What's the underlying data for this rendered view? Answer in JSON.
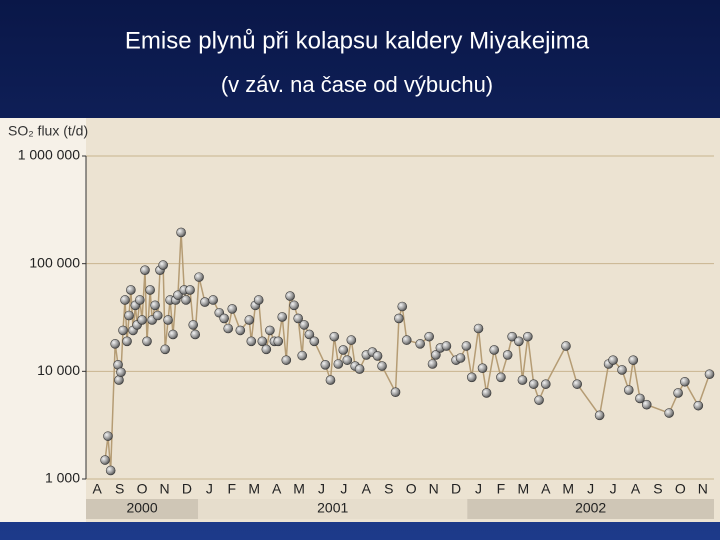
{
  "title": "Emise plynů při kolapsu kaldery Miyakejima",
  "subtitle": "(v záv. na čase od výbuchu)",
  "chart_data": {
    "type": "line",
    "y_label": "SO₂ flux (t/d)",
    "log_scale": true,
    "grid": true,
    "color": "#b59c74",
    "marker_color": "#8a8a8a",
    "xlim": [
      0,
      28
    ],
    "xticks": [
      {
        "value": 0.5,
        "label": "A"
      },
      {
        "value": 1.5,
        "label": "S"
      },
      {
        "value": 2.5,
        "label": "O"
      },
      {
        "value": 3.5,
        "label": "N"
      },
      {
        "value": 4.5,
        "label": "D"
      },
      {
        "value": 5.5,
        "label": "J"
      },
      {
        "value": 6.5,
        "label": "F"
      },
      {
        "value": 7.5,
        "label": "M"
      },
      {
        "value": 8.5,
        "label": "A"
      },
      {
        "value": 9.5,
        "label": "M"
      },
      {
        "value": 10.5,
        "label": "J"
      },
      {
        "value": 11.5,
        "label": "J"
      },
      {
        "value": 12.5,
        "label": "A"
      },
      {
        "value": 13.5,
        "label": "S"
      },
      {
        "value": 14.5,
        "label": "O"
      },
      {
        "value": 15.5,
        "label": "N"
      },
      {
        "value": 16.5,
        "label": "D"
      },
      {
        "value": 17.5,
        "label": "J"
      },
      {
        "value": 18.5,
        "label": "F"
      },
      {
        "value": 19.5,
        "label": "M"
      },
      {
        "value": 20.5,
        "label": "A"
      },
      {
        "value": 21.5,
        "label": "M"
      },
      {
        "value": 22.5,
        "label": "J"
      },
      {
        "value": 23.5,
        "label": "J"
      },
      {
        "value": 24.5,
        "label": "A"
      },
      {
        "value": 25.5,
        "label": "S"
      },
      {
        "value": 26.5,
        "label": "O"
      },
      {
        "value": 27.5,
        "label": "N"
      }
    ],
    "years": [
      {
        "label": "2000",
        "start": 0,
        "end": 5
      },
      {
        "label": "2001",
        "start": 5,
        "end": 17
      },
      {
        "label": "2002",
        "start": 17,
        "end": 28
      }
    ],
    "ylim": [
      1000,
      1000000
    ],
    "yticks": [
      {
        "value": 1000,
        "label": "1 000"
      },
      {
        "value": 10000,
        "label": "10 000"
      },
      {
        "value": 100000,
        "label": "100 000"
      },
      {
        "value": 1000000,
        "label": "1 000 000"
      }
    ],
    "x": [
      0.85,
      0.98,
      1.1,
      1.3,
      1.43,
      1.47,
      1.56,
      1.65,
      1.74,
      1.83,
      1.92,
      2.0,
      2.1,
      2.2,
      2.28,
      2.4,
      2.5,
      2.63,
      2.72,
      2.86,
      2.95,
      3.08,
      3.2,
      3.3,
      3.44,
      3.53,
      3.66,
      3.75,
      3.88,
      4.0,
      4.1,
      4.24,
      4.38,
      4.46,
      4.64,
      4.78,
      4.87,
      5.04,
      5.3,
      5.67,
      5.94,
      6.16,
      6.34,
      6.52,
      6.88,
      7.28,
      7.37,
      7.55,
      7.7,
      7.86,
      8.04,
      8.2,
      8.4,
      8.57,
      8.75,
      8.93,
      9.1,
      9.28,
      9.46,
      9.64,
      9.73,
      9.96,
      10.18,
      10.67,
      10.9,
      11.07,
      11.25,
      11.47,
      11.65,
      11.83,
      12.0,
      12.2,
      12.5,
      12.77,
      13.0,
      13.2,
      13.8,
      13.95,
      14.1,
      14.3,
      14.9,
      15.3,
      15.45,
      15.6,
      15.8,
      16.07,
      16.5,
      16.7,
      16.96,
      17.2,
      17.5,
      17.68,
      17.86,
      18.2,
      18.5,
      18.8,
      19.0,
      19.3,
      19.46,
      19.7,
      19.96,
      20.2,
      20.5,
      21.4,
      21.9,
      22.9,
      23.3,
      23.5,
      23.9,
      24.2,
      24.4,
      24.7,
      25.0,
      26.0,
      26.4,
      26.7,
      27.3,
      27.8
    ],
    "values": [
      1500,
      2500,
      1200,
      18000,
      11500,
      8300,
      9800,
      24000,
      46000,
      19000,
      33000,
      57000,
      24000,
      41000,
      27000,
      46000,
      30000,
      87000,
      19000,
      57000,
      30000,
      41000,
      33000,
      87000,
      97000,
      16000,
      30000,
      46000,
      22000,
      46000,
      51000,
      195000,
      57000,
      46000,
      57000,
      27000,
      22000,
      75000,
      44000,
      46000,
      35000,
      31000,
      25000,
      38000,
      24000,
      30000,
      19000,
      41000,
      46000,
      19000,
      16000,
      24000,
      19000,
      19000,
      32000,
      12700,
      50000,
      41000,
      31000,
      14000,
      27000,
      22000,
      19000,
      11500,
      8300,
      21000,
      11700,
      15800,
      12700,
      19500,
      11200,
      10500,
      14200,
      15100,
      13900,
      11200,
      6400,
      31000,
      40000,
      19500,
      18000,
      21000,
      11700,
      14200,
      16500,
      17200,
      12700,
      13300,
      17200,
      8800,
      25000,
      10700,
      6300,
      15800,
      8800,
      14200,
      21000,
      19000,
      8300,
      21000,
      7600,
      5400,
      7600,
      17200,
      7600,
      3900,
      11700,
      12700,
      10300,
      6700,
      12700,
      5600,
      4900,
      4100,
      6300,
      8000,
      4800,
      9400
    ]
  }
}
